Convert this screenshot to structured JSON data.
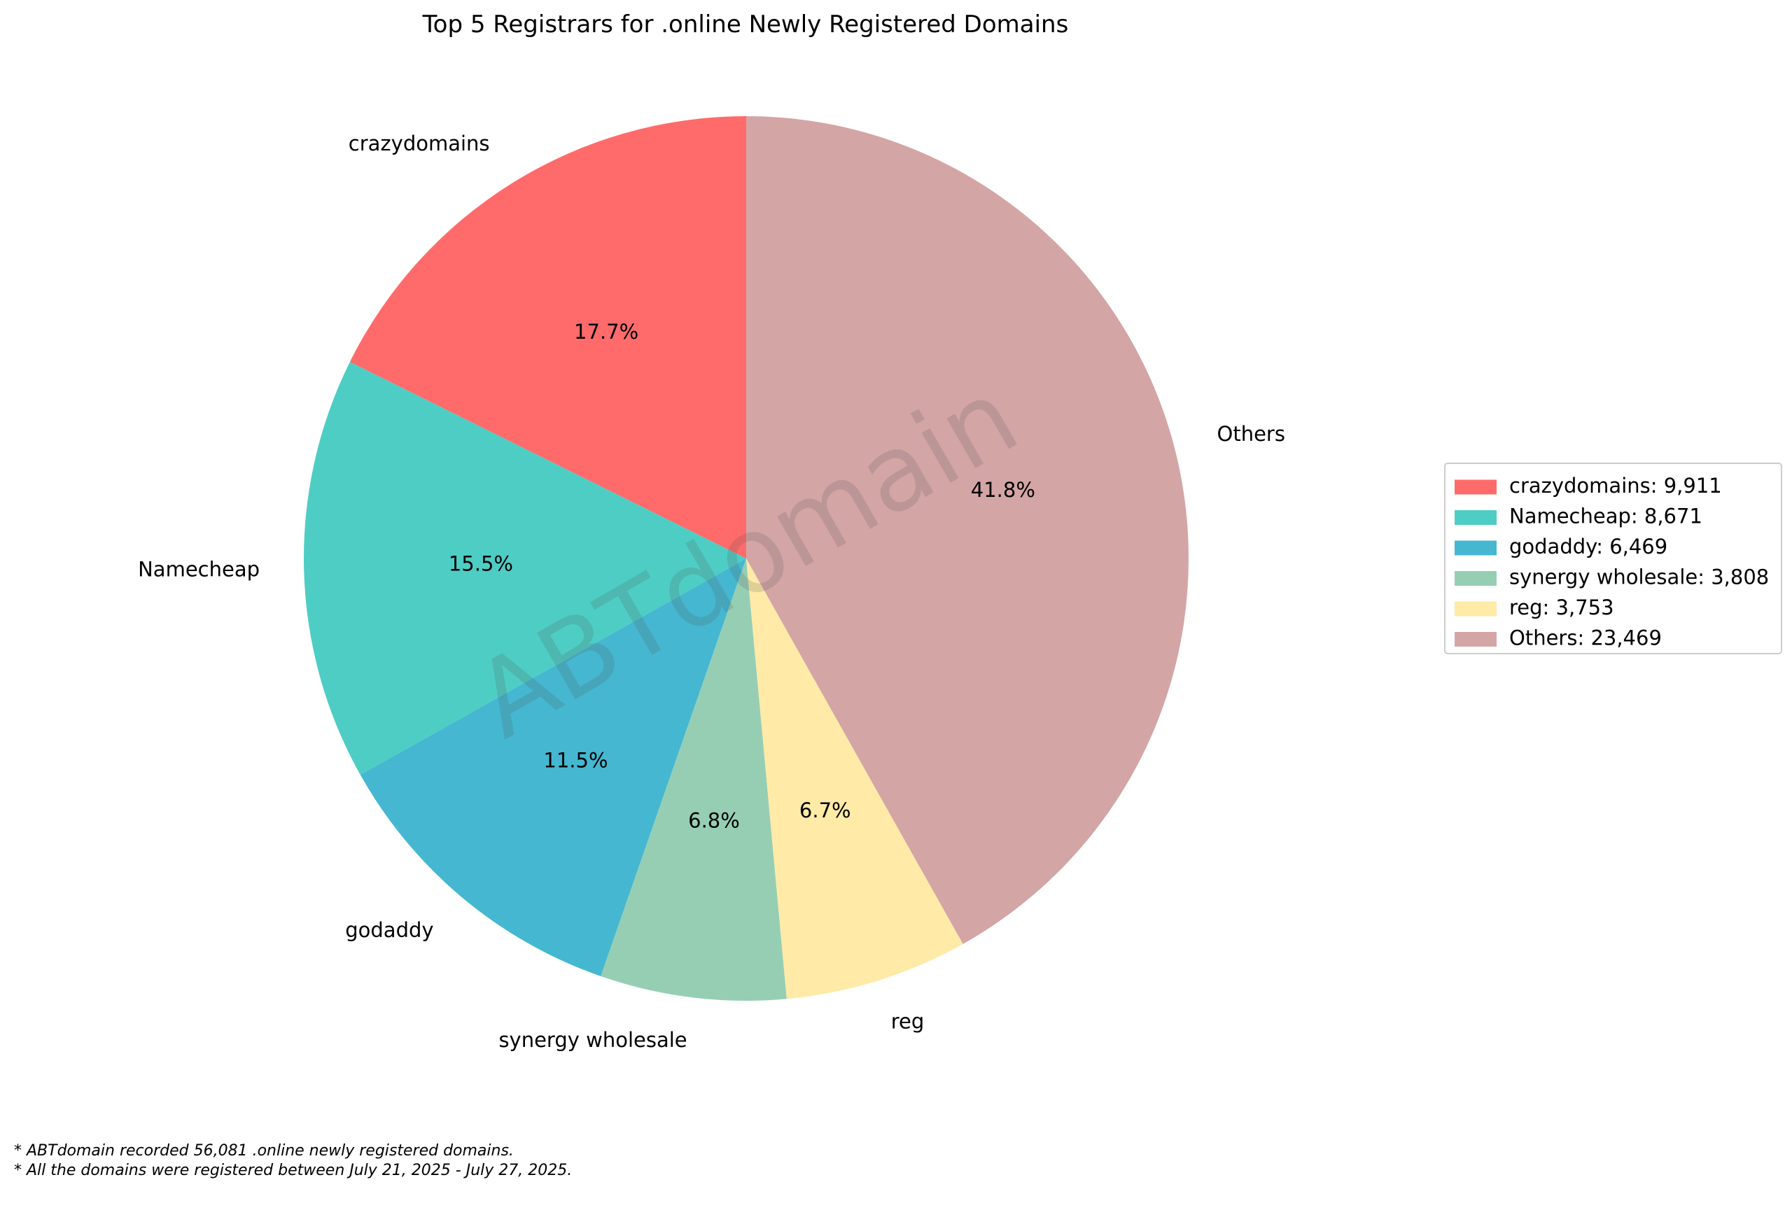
{
  "chart_data": {
    "type": "pie",
    "title": "Top 5 Registrars for .online Newly Registered Domains",
    "categories": [
      "crazydomains",
      "Namecheap",
      "godaddy",
      "synergy wholesale",
      "reg",
      "Others"
    ],
    "values": [
      9911,
      8671,
      6469,
      3808,
      3753,
      23469
    ],
    "percent_labels": [
      "17.7%",
      "15.5%",
      "11.5%",
      "6.8%",
      "6.7%",
      "41.8%"
    ],
    "legend_labels": [
      "crazydomains: 9,911",
      "Namecheap: 8,671",
      "godaddy: 6,469",
      "synergy wholesale: 3,808",
      "reg: 3,753",
      "Others: 23,469"
    ],
    "colors": [
      "#ff6b6b",
      "#4ecdc4",
      "#45b7d1",
      "#96ceb4",
      "#ffeaa7",
      "#d4a5a5"
    ],
    "start_angle_deg": 90,
    "direction": "counterclockwise",
    "legend_position": "center-right"
  },
  "watermark": "ABTdomain",
  "footnotes": [
    "* ABTdomain recorded 56,081 .online newly registered domains.",
    "* All the domains were registered between July 21, 2025 - July 27, 2025."
  ]
}
